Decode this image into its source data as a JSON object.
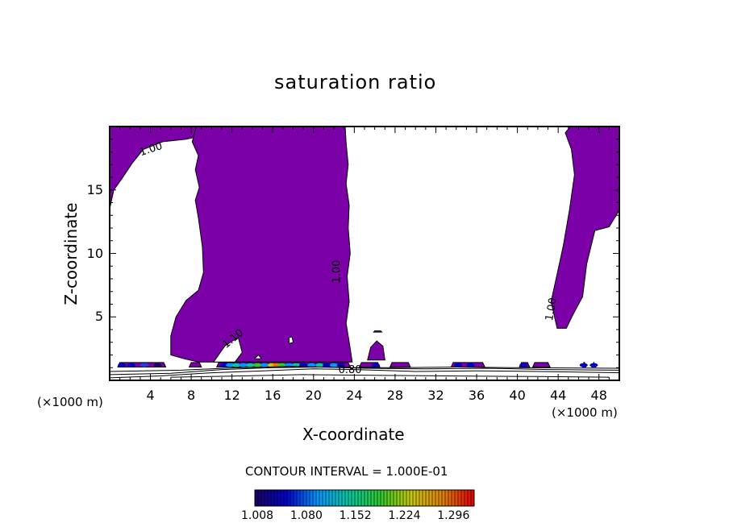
{
  "chart_data": {
    "type": "contour",
    "title": "saturation ratio",
    "xlabel": "X-coordinate",
    "ylabel": "Z-coordinate",
    "x_unit": "(×1000 m)",
    "z_unit": "(×1000 m)",
    "xlim": [
      0,
      50
    ],
    "ylim": [
      0,
      20
    ],
    "x_ticks": [
      4,
      8,
      12,
      16,
      20,
      24,
      28,
      32,
      36,
      40,
      44,
      48
    ],
    "y_ticks": [
      5,
      10,
      15
    ],
    "contour_interval_text": "CONTOUR INTERVAL = 1.000E-01",
    "contour_labels": [
      {
        "text": "1.00",
        "x": 4.2,
        "z": 18.1
      },
      {
        "text": "1.00",
        "x": 22.5,
        "z": 8.5
      },
      {
        "text": "1.00",
        "x": 43.5,
        "z": 5.5
      },
      {
        "text": "1.10",
        "x": 12.3,
        "z": 3.2
      },
      {
        "text": "0.80",
        "x": 23.7,
        "z": 0.7
      }
    ],
    "colorbar": {
      "values": [
        1.008,
        1.08,
        1.152,
        1.224,
        1.296
      ],
      "labels": [
        "1.008",
        "1.080",
        "1.152",
        "1.224",
        "1.296"
      ],
      "colors": [
        "#1a0060",
        "#0000c8",
        "#0096ff",
        "#00c8a0",
        "#32c832",
        "#c8c800",
        "#e08000",
        "#e00000"
      ]
    },
    "fill_color": "#7b00a8",
    "regions": [
      {
        "name": "upper-left supersaturated region",
        "x_range": [
          0,
          8.5
        ],
        "z_range": [
          13.5,
          20
        ]
      },
      {
        "name": "central supersaturated column",
        "x_range": [
          6,
          23.5
        ],
        "z_range": [
          1.4,
          20
        ]
      },
      {
        "name": "right supersaturated region",
        "x_range": [
          43,
          50
        ],
        "z_range": [
          4,
          20
        ]
      },
      {
        "name": "low-level cloud band",
        "x_range": [
          1,
          44
        ],
        "z_range": [
          0.8,
          1.6
        ]
      }
    ]
  }
}
